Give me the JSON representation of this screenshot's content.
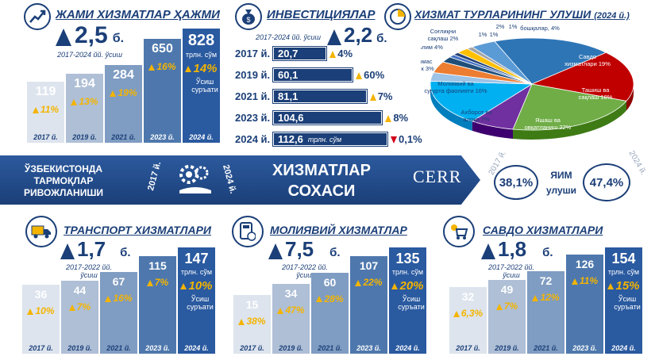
{
  "colors": {
    "navy": "#1b3f78",
    "gold": "#f4b400",
    "red": "#d0021b"
  },
  "total": {
    "title": "ЖАМИ ХИЗМАТЛАР ҲАЖМИ",
    "value": "2,5",
    "unit": "б.",
    "period": "2017-2024 йй. ўсиш",
    "icon": "chart-growth-icon"
  },
  "invest": {
    "title": "ИНВЕСТИЦИЯЛАР",
    "value": "2,2",
    "unit": "б.",
    "period": "2017-2024 йй. ўсиш",
    "icon": "money-bag-icon",
    "unit_label": "трлн. сўм"
  },
  "structure": {
    "title": "ХИЗМАТ ТУРЛАРИНИНГ УЛУШИ",
    "year": "(2024 й.)",
    "icon": "pie-icon"
  },
  "banner": {
    "left": "ЎЗБЕКИСТОНДА ТАРМОҚЛАР РИВОЖЛАНИШИ",
    "y1": "2017 й.",
    "y2": "2024 й.",
    "center1": "ХИЗМАТЛАР",
    "center2": "СОХАСИ",
    "logo": "CERR",
    "gdp_2017": "38,1%",
    "gdp_2024": "47,4%",
    "gdp_label1": "ЯИМ",
    "gdp_label2": "улуши",
    "gdp_y1": "2017 й.",
    "gdp_y2": "2024 й."
  },
  "transport": {
    "title": "ТРАНСПОРТ ХИЗМАТЛАРИ",
    "value": "1,7",
    "unit": "б.",
    "period": "2017-2022 йй. ўсиш",
    "icon": "truck-icon"
  },
  "finance": {
    "title": "МОЛИЯВИЙ ХИЗМАТЛАР",
    "value": "7,5",
    "unit": "б.",
    "period": "2017-2022 йй. ўсиш",
    "icon": "calculator-icon"
  },
  "trade": {
    "title": "САВДО ХИЗМАТЛАРИ",
    "value": "1,8",
    "unit": "б.",
    "period": "2017-2022 йй. ўсиш",
    "icon": "cart-icon"
  },
  "labels": {
    "unit": "трлн. сўм",
    "growth": "Ўсиш суръати",
    "trln": "трлн. сўм"
  },
  "chart_data": [
    {
      "type": "bar",
      "name": "total",
      "categories": [
        "2017 й.",
        "2019 й.",
        "2021 й.",
        "2023 й.",
        "2024 й."
      ],
      "values": [
        119,
        194,
        284,
        650,
        828
      ],
      "growth": [
        "11%",
        "13%",
        "19%",
        "16%",
        "14%"
      ]
    },
    {
      "type": "table",
      "name": "investments",
      "rows": [
        {
          "year": "2017 й.",
          "value": "20,7",
          "growth": "4%",
          "dir": "up"
        },
        {
          "year": "2019 й.",
          "value": "60,1",
          "growth": "60%",
          "dir": "up"
        },
        {
          "year": "2021 й.",
          "value": "81,1",
          "growth": "7%",
          "dir": "up"
        },
        {
          "year": "2023 й.",
          "value": "104,6",
          "growth": "8%",
          "dir": "up"
        },
        {
          "year": "2024 й.",
          "value": "112,6",
          "growth": "0,1%",
          "dir": "down"
        }
      ],
      "values": [
        20.7,
        60.1,
        81.1,
        104.6,
        112.6
      ]
    },
    {
      "type": "pie",
      "name": "structure",
      "slices": [
        {
          "label": "Савдо хизматлари",
          "value": 19,
          "color": "#2e75b6"
        },
        {
          "label": "Ташиш ва сақлаш",
          "value": 18,
          "color": "#c00000"
        },
        {
          "label": "Яшаш ва овқатланиш",
          "value": 22,
          "color": "#70ad47"
        },
        {
          "label": "Ахборот ва алоқа",
          "value": 7,
          "color": "#7030a0"
        },
        {
          "label": "Молиявий ва суғурта фаолияти",
          "value": 16,
          "color": "#00b0f0"
        },
        {
          "label": "Кўчмас мулк",
          "value": 3,
          "color": "#9dc3e6"
        },
        {
          "label": "Таълим",
          "value": 4,
          "color": "#ed7d31"
        },
        {
          "label": "Соғлиқни сақлаш",
          "value": 2,
          "color": "#1f4e79"
        },
        {
          "label": "",
          "value": 1,
          "color": "#4472c4"
        },
        {
          "label": "",
          "value": 1,
          "color": "#264478"
        },
        {
          "label": "",
          "value": 2,
          "color": "#ffc000"
        },
        {
          "label": "",
          "value": 1,
          "color": "#a5a5a5"
        },
        {
          "label": "бошқалар",
          "value": 4,
          "color": "#5b9bd5"
        }
      ],
      "display": [
        "Савдо хизматлари 19%",
        "Ташиш ва сақлаш 18%",
        "Яшаш ва овқатланиш 22%",
        "Ахборот ва алоқа 7%",
        "Молиявий ва суғурта фаолияти 16%",
        "Кўчмас мулк 3%",
        "Таълим 4%",
        "Соғлиқни сақлаш 2%",
        "1%",
        "1%",
        "2%",
        "1%",
        "бошқалар, 4%"
      ]
    },
    {
      "type": "bar",
      "name": "transport",
      "categories": [
        "2017 й.",
        "2019 й.",
        "2021 й.",
        "2023 й.",
        "2024 й."
      ],
      "values": [
        36,
        44,
        67,
        115,
        147
      ],
      "growth": [
        "10%",
        "7%",
        "16%",
        "7%",
        "10%"
      ]
    },
    {
      "type": "bar",
      "name": "finance",
      "categories": [
        "2017 й.",
        "2019 й.",
        "2021 й.",
        "2023 й.",
        "2024 й."
      ],
      "values": [
        15,
        34,
        60,
        107,
        135
      ],
      "growth": [
        "38%",
        "47%",
        "28%",
        "22%",
        "20%"
      ]
    },
    {
      "type": "bar",
      "name": "trade",
      "categories": [
        "2017 й.",
        "2019 й.",
        "2021 й.",
        "2023 й.",
        "2024 й."
      ],
      "values": [
        32,
        49,
        72,
        126,
        154
      ],
      "growth": [
        "6,3%",
        "7%",
        "12%",
        "11%",
        "15%"
      ]
    }
  ]
}
